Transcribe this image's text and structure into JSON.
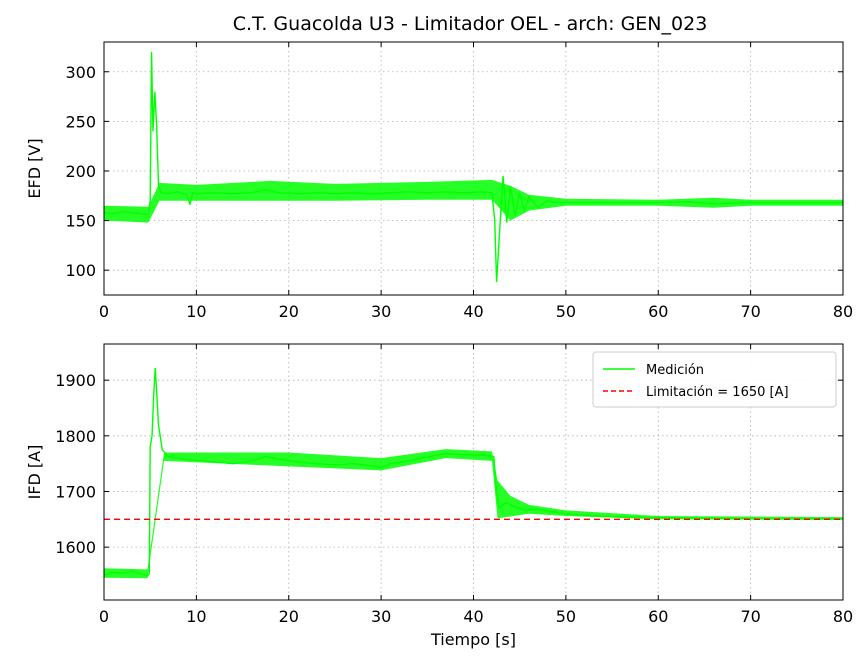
{
  "chart_data": [
    {
      "type": "line",
      "title": "C.T. Guacolda U3 - Limitador OEL - arch: GEN_023",
      "xlabel": "",
      "ylabel": "EFD [V]",
      "xlim": [
        0,
        80
      ],
      "ylim": [
        75,
        330
      ],
      "xticks": [
        0,
        10,
        20,
        30,
        40,
        50,
        60,
        70,
        80
      ],
      "yticks": [
        100,
        150,
        200,
        250,
        300
      ],
      "grid": true,
      "series": [
        {
          "color": "#00ff00",
          "points": [
            [
              0,
              158
            ],
            [
              1,
              157
            ],
            [
              2,
              159
            ],
            [
              3,
              158
            ],
            [
              4,
              157
            ],
            [
              4.8,
              156
            ],
            [
              5.0,
              170
            ],
            [
              5.15,
              320
            ],
            [
              5.3,
              240
            ],
            [
              5.5,
              280
            ],
            [
              5.7,
              245
            ],
            [
              5.9,
              185
            ],
            [
              6.2,
              178
            ],
            [
              7,
              177
            ],
            [
              8,
              179
            ],
            [
              9,
              176
            ],
            [
              9.3,
              166
            ],
            [
              9.6,
              178
            ],
            [
              10,
              177
            ],
            [
              12,
              178
            ],
            [
              14,
              177
            ],
            [
              16,
              178
            ],
            [
              17.5,
              181
            ],
            [
              19,
              178
            ],
            [
              21,
              177
            ],
            [
              23,
              178
            ],
            [
              25,
              177
            ],
            [
              27,
              178
            ],
            [
              29,
              177
            ],
            [
              31,
              178
            ],
            [
              33,
              179
            ],
            [
              35,
              178
            ],
            [
              37,
              179
            ],
            [
              39,
              178
            ],
            [
              41,
              179
            ],
            [
              42.0,
              178
            ],
            [
              42.3,
              150
            ],
            [
              42.5,
              88
            ],
            [
              42.8,
              135
            ],
            [
              43.2,
              195
            ],
            [
              43.6,
              148
            ],
            [
              44.0,
              185
            ],
            [
              44.5,
              155
            ],
            [
              45,
              178
            ],
            [
              45.5,
              160
            ],
            [
              46,
              174
            ],
            [
              47,
              163
            ],
            [
              48,
              170
            ],
            [
              49,
              168
            ],
            [
              50,
              168
            ],
            [
              55,
              168
            ],
            [
              60,
              168
            ],
            [
              63,
              169
            ],
            [
              66,
              167
            ],
            [
              70,
              168
            ],
            [
              75,
              168
            ],
            [
              80,
              168
            ]
          ],
          "band": [
            [
              0,
              150,
              165
            ],
            [
              4.8,
              148,
              164
            ],
            [
              6,
              170,
              188
            ],
            [
              10,
              170,
              186
            ],
            [
              18,
              170,
              190
            ],
            [
              25,
              170,
              187
            ],
            [
              35,
              171,
              189
            ],
            [
              42,
              171,
              191
            ],
            [
              44,
              150,
              185
            ],
            [
              46,
              160,
              176
            ],
            [
              50,
              165,
              172
            ],
            [
              60,
              165,
              171
            ],
            [
              66,
              163,
              173
            ],
            [
              70,
              165,
              171
            ],
            [
              80,
              165,
              171
            ]
          ]
        }
      ]
    },
    {
      "type": "line",
      "title": "",
      "xlabel": "Tiempo [s]",
      "ylabel": "IFD [A]",
      "xlim": [
        0,
        80
      ],
      "ylim": [
        1505,
        1965
      ],
      "xticks": [
        0,
        10,
        20,
        30,
        40,
        50,
        60,
        70,
        80
      ],
      "yticks": [
        1600,
        1700,
        1800,
        1900
      ],
      "grid": true,
      "legend_position": "top-right",
      "series": [
        {
          "name": "Medición",
          "color": "#00ff00",
          "style": "solid",
          "points": [
            [
              0,
              1550
            ],
            [
              1,
              1555
            ],
            [
              2,
              1553
            ],
            [
              3,
              1557
            ],
            [
              4,
              1552
            ],
            [
              4.7,
              1548
            ],
            [
              4.9,
              1552
            ],
            [
              5.0,
              1780
            ],
            [
              5.2,
              1800
            ],
            [
              5.4,
              1880
            ],
            [
              5.55,
              1922
            ],
            [
              5.7,
              1880
            ],
            [
              5.9,
              1820
            ],
            [
              6.3,
              1775
            ],
            [
              7,
              1762
            ],
            [
              8,
              1760
            ],
            [
              9,
              1757
            ],
            [
              10,
              1756
            ],
            [
              12,
              1753
            ],
            [
              14,
              1750
            ],
            [
              16,
              1755
            ],
            [
              17.5,
              1763
            ],
            [
              19,
              1758
            ],
            [
              21,
              1753
            ],
            [
              23,
              1750
            ],
            [
              25,
              1748
            ],
            [
              27,
              1750
            ],
            [
              29,
              1746
            ],
            [
              30,
              1743
            ],
            [
              31,
              1750
            ],
            [
              33,
              1755
            ],
            [
              35,
              1762
            ],
            [
              37,
              1768
            ],
            [
              39,
              1766
            ],
            [
              41,
              1765
            ],
            [
              42.2,
              1763
            ],
            [
              42.5,
              1700
            ],
            [
              42.8,
              1670
            ],
            [
              43.5,
              1680
            ],
            [
              44.5,
              1672
            ],
            [
              45.5,
              1667
            ],
            [
              47,
              1668
            ],
            [
              48,
              1665
            ],
            [
              50,
              1660
            ],
            [
              53,
              1656
            ],
            [
              56,
              1654
            ],
            [
              60,
              1653
            ],
            [
              65,
              1652
            ],
            [
              70,
              1651
            ],
            [
              75,
              1651
            ],
            [
              80,
              1651
            ]
          ],
          "band": [
            [
              0,
              1545,
              1562
            ],
            [
              4.7,
              1544,
              1560
            ],
            [
              6.5,
              1755,
              1770
            ],
            [
              20,
              1745,
              1770
            ],
            [
              30,
              1738,
              1760
            ],
            [
              37,
              1760,
              1776
            ],
            [
              42,
              1755,
              1772
            ],
            [
              42.6,
              1652,
              1720
            ],
            [
              44,
              1655,
              1692
            ],
            [
              46,
              1660,
              1676
            ],
            [
              50,
              1656,
              1666
            ],
            [
              60,
              1650,
              1656
            ],
            [
              80,
              1649,
              1654
            ]
          ]
        },
        {
          "name": "Limitación = 1650 [A]",
          "color": "#ff0000",
          "style": "dashed",
          "points": [
            [
              0,
              1650
            ],
            [
              80,
              1650
            ]
          ]
        }
      ]
    }
  ]
}
